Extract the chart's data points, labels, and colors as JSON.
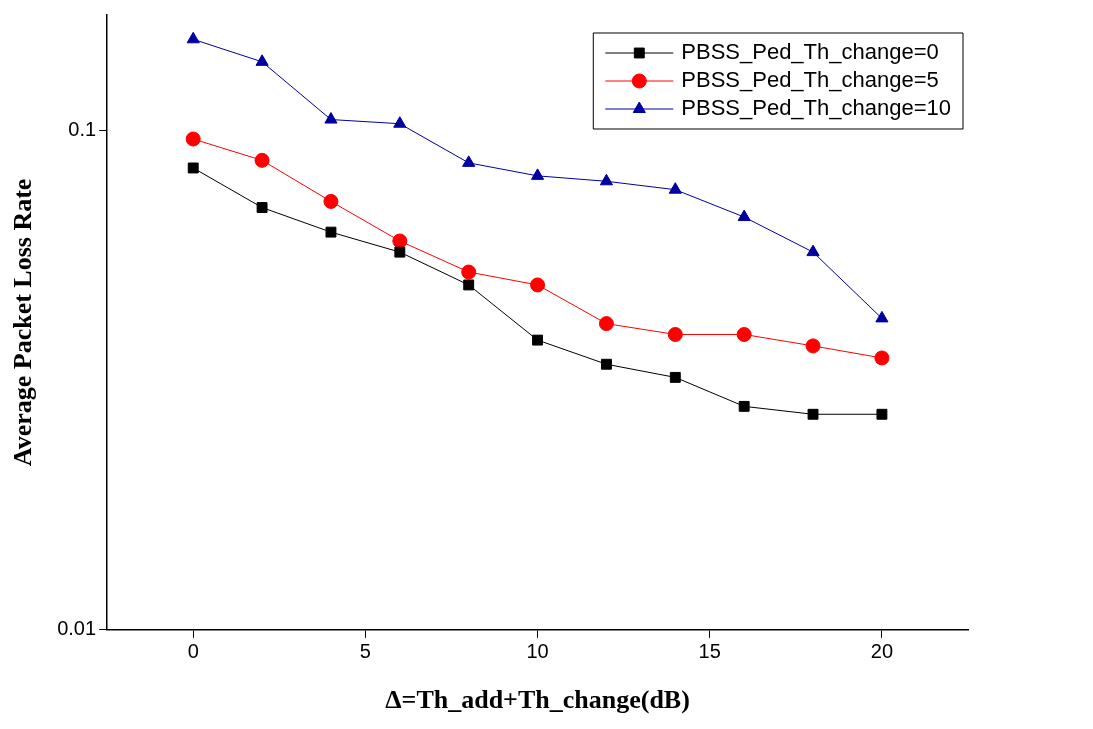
{
  "chart_data": {
    "type": "line",
    "xlabel": "Δ=Th_add+Th_change(dB)",
    "ylabel": "Average Packet Loss Rate",
    "x": [
      0,
      2,
      4,
      6,
      8,
      10,
      12,
      14,
      16,
      18,
      20
    ],
    "series": [
      {
        "name": "PBSS_Ped_Th_change=0",
        "color": "#000000",
        "marker": "square",
        "values": [
          0.084,
          0.07,
          0.0625,
          0.057,
          0.049,
          0.038,
          0.034,
          0.032,
          0.028,
          0.027,
          0.027
        ]
      },
      {
        "name": "PBSS_Ped_Th_change=5",
        "color": "#ff0000",
        "marker": "circle",
        "values": [
          0.096,
          0.087,
          0.072,
          0.06,
          0.052,
          0.049,
          0.041,
          0.039,
          0.039,
          0.037,
          0.035
        ]
      },
      {
        "name": "PBSS_Ped_Th_change=10",
        "color": "#0000a0",
        "marker": "triangle",
        "values": [
          0.152,
          0.137,
          0.105,
          0.103,
          0.086,
          0.081,
          0.079,
          0.076,
          0.067,
          0.057,
          0.042
        ]
      }
    ],
    "xlim": [
      -2.5,
      22.5
    ],
    "xticks": [
      0,
      5,
      10,
      15,
      20
    ],
    "log": "y",
    "ylim": [
      0.01,
      0.17
    ],
    "yticks": [
      0.01,
      0.1
    ],
    "legend": "top right",
    "grid": false,
    "line_style": "solid"
  }
}
